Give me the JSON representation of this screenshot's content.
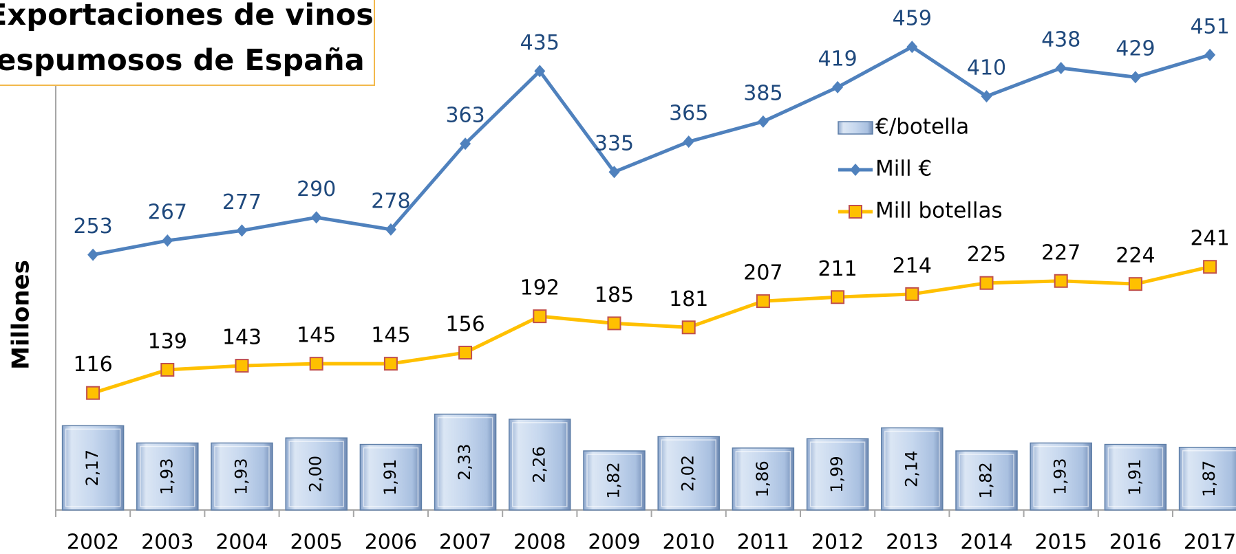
{
  "chart_data": {
    "type": "combo",
    "title": "Exportaciones de vinos\nespumosos de España",
    "ylabel": "Millones",
    "categories": [
      "2002",
      "2003",
      "2004",
      "2005",
      "2006",
      "2007",
      "2008",
      "2009",
      "2010",
      "2011",
      "2012",
      "2013",
      "2014",
      "2015",
      "2016",
      "2017"
    ],
    "ylim": [
      0,
      500
    ],
    "y2lim": [
      1,
      8
    ],
    "series": [
      {
        "name": "€/botella",
        "type": "bar",
        "axis": "y2",
        "color": "#b9cde5",
        "values": [
          2.17,
          1.93,
          1.93,
          2.0,
          1.91,
          2.33,
          2.26,
          1.82,
          2.02,
          1.86,
          1.99,
          2.14,
          1.82,
          1.93,
          1.91,
          1.87
        ],
        "value_labels": [
          "2,17",
          "1,93",
          "1,93",
          "2,00",
          "1,91",
          "2,33",
          "2,26",
          "1,82",
          "2,02",
          "1,86",
          "1,99",
          "2,14",
          "1,82",
          "1,93",
          "1,91",
          "1,87"
        ]
      },
      {
        "name": "Mill €",
        "type": "line",
        "color": "#4f81bd",
        "marker": "diamond",
        "label_color": "#1f497d",
        "values": [
          253,
          267,
          277,
          290,
          278,
          363,
          435,
          335,
          365,
          385,
          419,
          459,
          410,
          438,
          429,
          451
        ]
      },
      {
        "name": "Mill botellas",
        "type": "line",
        "color": "#ffc000",
        "marker": "square",
        "marker_edge": "#c0504d",
        "label_color": "#000000",
        "values": [
          116,
          139,
          143,
          145,
          145,
          156,
          192,
          185,
          181,
          207,
          211,
          214,
          225,
          227,
          224,
          241
        ]
      }
    ],
    "legend": "right"
  }
}
